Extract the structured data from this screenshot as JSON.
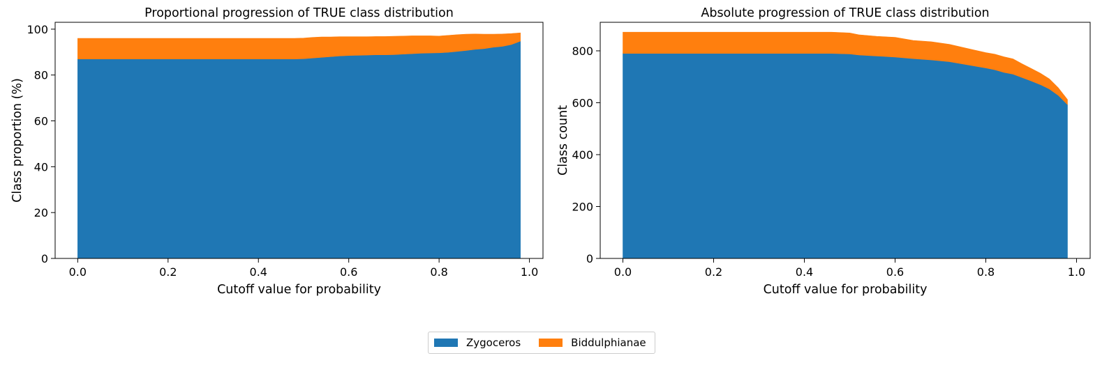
{
  "chart_data": [
    {
      "type": "area",
      "stacked": true,
      "title": "Proportional progression of TRUE class distribution",
      "xlabel": "Cutoff value for probability",
      "ylabel": "Class proportion (%)",
      "xlim": [
        -0.05,
        1.03
      ],
      "ylim": [
        0,
        103
      ],
      "xticks": [
        0.0,
        0.2,
        0.4,
        0.6,
        0.8,
        1.0
      ],
      "xtick_labels": [
        "0.0",
        "0.2",
        "0.4",
        "0.6",
        "0.8",
        "1.0"
      ],
      "yticks": [
        0,
        20,
        40,
        60,
        80,
        100
      ],
      "ytick_labels": [
        "0",
        "20",
        "40",
        "60",
        "80",
        "100"
      ],
      "x": [
        0.0,
        0.1,
        0.2,
        0.3,
        0.4,
        0.48,
        0.5,
        0.52,
        0.54,
        0.56,
        0.58,
        0.6,
        0.62,
        0.64,
        0.66,
        0.68,
        0.7,
        0.72,
        0.74,
        0.76,
        0.78,
        0.8,
        0.82,
        0.84,
        0.86,
        0.88,
        0.9,
        0.92,
        0.94,
        0.96,
        0.98
      ],
      "series": [
        {
          "name": "Zygoceros",
          "color": "#1f77b4",
          "values": [
            87.0,
            87.0,
            87.0,
            87.0,
            87.0,
            87.0,
            87.1,
            87.4,
            87.7,
            88.0,
            88.3,
            88.5,
            88.6,
            88.7,
            88.8,
            88.8,
            88.9,
            89.1,
            89.3,
            89.5,
            89.6,
            89.7,
            89.9,
            90.3,
            90.7,
            91.2,
            91.5,
            92.1,
            92.5,
            93.3,
            94.8
          ]
        },
        {
          "name": "Biddulphianae",
          "color": "#ff7f0e",
          "values": [
            9.0,
            9.0,
            9.0,
            9.0,
            9.0,
            9.0,
            9.0,
            9.0,
            8.9,
            8.6,
            8.4,
            8.2,
            8.1,
            8.0,
            8.0,
            8.0,
            8.0,
            7.9,
            7.8,
            7.6,
            7.5,
            7.3,
            7.4,
            7.3,
            7.1,
            6.7,
            6.3,
            5.7,
            5.4,
            4.8,
            3.6
          ]
        }
      ],
      "grid": false
    },
    {
      "type": "area",
      "stacked": true,
      "title": "Absolute progression of TRUE class distribution",
      "xlabel": "Cutoff value for probability",
      "ylabel": "Class count",
      "xlim": [
        -0.05,
        1.03
      ],
      "ylim": [
        0,
        910
      ],
      "xticks": [
        0.0,
        0.2,
        0.4,
        0.6,
        0.8,
        1.0
      ],
      "xtick_labels": [
        "0.0",
        "0.2",
        "0.4",
        "0.6",
        "0.8",
        "1.0"
      ],
      "yticks": [
        0,
        200,
        400,
        600,
        800
      ],
      "ytick_labels": [
        "0",
        "200",
        "400",
        "600",
        "800"
      ],
      "x": [
        0.0,
        0.1,
        0.2,
        0.3,
        0.4,
        0.46,
        0.5,
        0.52,
        0.56,
        0.6,
        0.64,
        0.68,
        0.72,
        0.76,
        0.8,
        0.82,
        0.84,
        0.86,
        0.88,
        0.9,
        0.92,
        0.94,
        0.96,
        0.98
      ],
      "series": [
        {
          "name": "Zygoceros",
          "color": "#1f77b4",
          "values": [
            790,
            790,
            790,
            790,
            790,
            790,
            788,
            784,
            780,
            776,
            770,
            765,
            758,
            746,
            734,
            727,
            717,
            710,
            697,
            684,
            670,
            653,
            628,
            593
          ]
        },
        {
          "name": "Biddulphianae",
          "color": "#ff7f0e",
          "values": [
            82,
            82,
            82,
            82,
            82,
            82,
            81,
            78,
            76,
            76,
            70,
            70,
            67,
            63,
            59,
            60,
            60,
            59,
            53,
            48,
            44,
            39,
            29,
            19
          ]
        }
      ],
      "grid": false
    }
  ],
  "legend": {
    "position": "bottom-center",
    "items": [
      {
        "label": "Zygoceros",
        "color": "#1f77b4"
      },
      {
        "label": "Biddulphianae",
        "color": "#ff7f0e"
      }
    ]
  }
}
